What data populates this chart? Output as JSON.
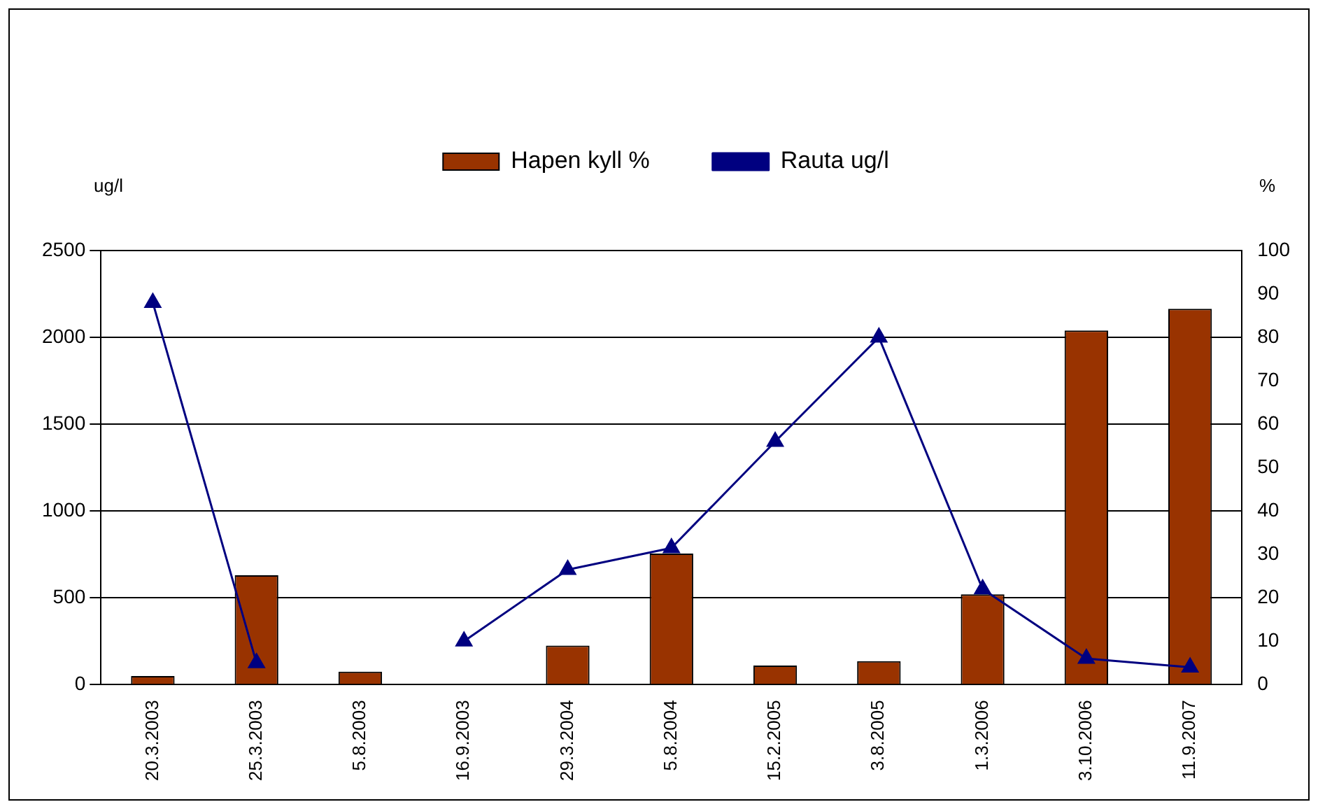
{
  "chart_data": {
    "type": "bar",
    "ylabel": "ug/l",
    "y2label": "%",
    "categories": [
      "20.3.2003",
      "25.3.2003",
      "5.8.2003",
      "16.9.2003",
      "29.3.2004",
      "5.8.2004",
      "15.2.2005",
      "3.8.2005",
      "1.3.2006",
      "3.10.2006",
      "11.9.2007"
    ],
    "series": [
      {
        "name": "Hapen kyll %",
        "color": "#993300",
        "values": [
          50,
          630,
          75,
          null,
          225,
          755,
          110,
          135,
          520,
          2040,
          2165
        ]
      },
      {
        "name": "Rauta ug/l",
        "type": "line",
        "axis": "y2",
        "color": "#000080",
        "marker": "triangle",
        "values": [
          88,
          5,
          null,
          10,
          26.5,
          31.5,
          56,
          80,
          22,
          6,
          4
        ]
      }
    ],
    "ylim": [
      0,
      2500
    ],
    "yticks": [
      0,
      500,
      1000,
      1500,
      2000,
      2500
    ],
    "y2lim": [
      0,
      100
    ],
    "y2ticks": [
      0,
      10,
      20,
      30,
      40,
      50,
      60,
      70,
      80,
      90,
      100
    ],
    "grid": "y",
    "legend": "top"
  }
}
